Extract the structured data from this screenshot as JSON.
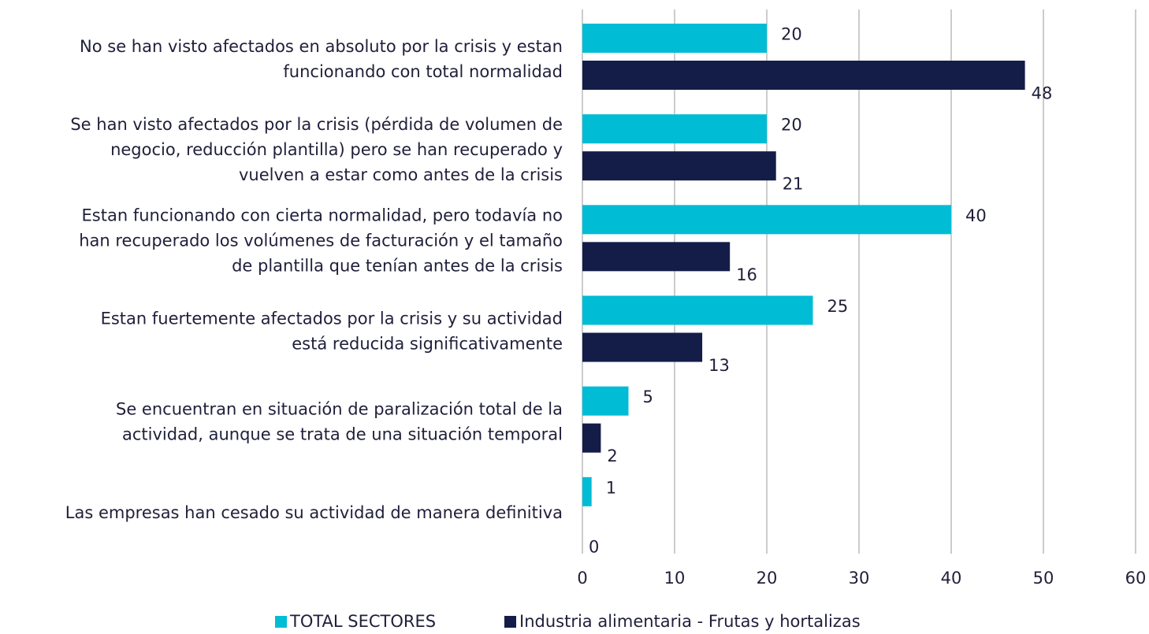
{
  "chart_data": {
    "type": "barh",
    "categories": [
      [
        "No se han visto afectados en absoluto por la crisis y estan",
        "funcionando con total normalidad"
      ],
      [
        "Se han visto afectados por la crisis (pérdida de volumen de",
        "negocio, reducción plantilla)  pero se han recuperado y",
        "vuelven a estar como antes de la crisis"
      ],
      [
        "Estan funcionando con cierta normalidad, pero todavía no",
        "han recuperado los volúmenes de facturación y el tamaño",
        "de plantilla que tenían antes de la crisis"
      ],
      [
        "Estan fuertemente afectados por la crisis y su actividad",
        "está reducida significativamente"
      ],
      [
        "Se encuentran en situación de paralización total de la",
        "actividad, aunque se trata de una situación temporal"
      ],
      [
        "Las empresas han cesado su actividad de manera definitiva"
      ]
    ],
    "series": [
      {
        "name": "TOTAL SECTORES",
        "color": "#00bcd4",
        "values": [
          20,
          20,
          40,
          25,
          5,
          1
        ]
      },
      {
        "name": "Industria alimentaria - Frutas y hortalizas",
        "color": "#141d48",
        "values": [
          48,
          21,
          16,
          13,
          2,
          0
        ]
      }
    ],
    "xlim": [
      0,
      60
    ],
    "xticks": [
      0,
      10,
      20,
      30,
      40,
      50,
      60
    ],
    "grid": true,
    "legend": "bottom"
  }
}
